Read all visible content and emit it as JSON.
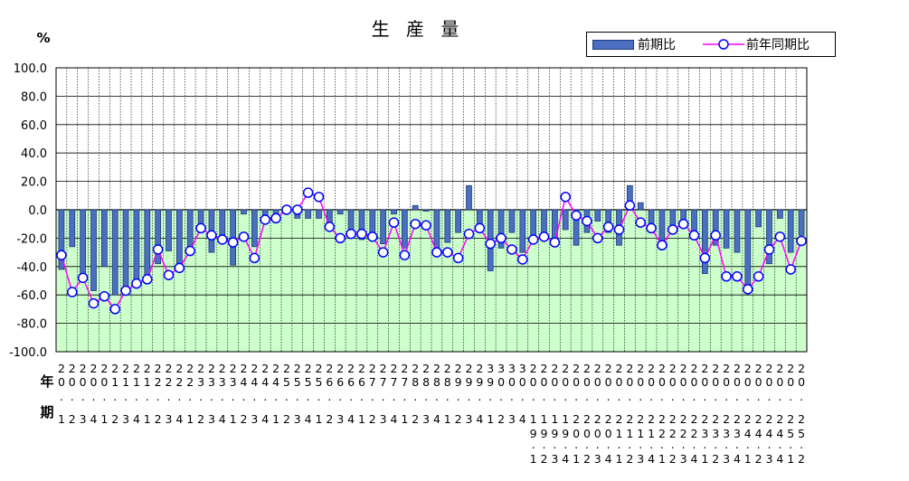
{
  "chart_data": {
    "type": "bar",
    "title": "生 産 量",
    "ylabel": "%",
    "row_label_year": "年",
    "row_label_period": "期",
    "ylim": [
      -100,
      100
    ],
    "yticks": [
      "100.0",
      "80.0",
      "60.0",
      "40.0",
      "20.0",
      "0.0",
      "-20.0",
      "-40.0",
      "-60.0",
      "-80.0",
      "-100.0"
    ],
    "categories": [
      "2001",
      "2002",
      "2003",
      "2004",
      "2011",
      "2012",
      "2013",
      "2014",
      "2021",
      "2022",
      "2023",
      "2024",
      "2031",
      "2032",
      "2033",
      "2034",
      "2041",
      "2042",
      "2043",
      "2044",
      "2051",
      "2052",
      "2053",
      "2054",
      "2061",
      "2062",
      "2063",
      "2064",
      "2071",
      "2072",
      "2073",
      "2074",
      "2081",
      "2082",
      "2083",
      "2084",
      "2091",
      "2092",
      "2093",
      "2094",
      "3001",
      "3002",
      "3003",
      "3004",
      "2191",
      "2192",
      "2193",
      "2194",
      "2201",
      "2202",
      "2203",
      "2204",
      "2211",
      "2212",
      "2213",
      "2214",
      "2221",
      "2222",
      "2223",
      "2224",
      "2231",
      "2232",
      "2233",
      "2234",
      "2241",
      "2242",
      "2243",
      "2244",
      "2251",
      "2252"
    ],
    "grid": true,
    "legend_position": "top-right",
    "series": [
      {
        "name": "前期比",
        "type": "bar",
        "color": "#4a6fc0",
        "values": [
          -42,
          -26,
          -47,
          -57,
          -40,
          -60,
          -57,
          -51,
          -52,
          -38,
          -29,
          -38,
          -28,
          -16,
          -30,
          -18,
          -39,
          -3,
          -26,
          -9,
          -4,
          1,
          -6,
          -6,
          -6,
          -14,
          -3,
          -17,
          -21,
          -21,
          -24,
          -3,
          -27,
          3,
          -1,
          -29,
          -23,
          -16,
          17,
          -10,
          -43,
          -27,
          -16,
          -30,
          -21,
          -17,
          -24,
          -14,
          -25,
          -16,
          -8,
          -16,
          -25,
          17,
          5,
          -12,
          -28,
          -17,
          -8,
          -15,
          -45,
          -25,
          -27,
          -30,
          -56,
          -12,
          -38,
          -6,
          -30,
          -18
        ]
      },
      {
        "name": "前年同期比",
        "type": "line",
        "color": "#ff00ff",
        "marker_color": "#0000ff",
        "values": [
          -32,
          -58,
          -48,
          -66,
          -61,
          -70,
          -57,
          -52,
          -49,
          -28,
          -46,
          -41,
          -29,
          -13,
          -18,
          -21,
          -23,
          -19,
          -34,
          -7,
          -6,
          0,
          0,
          12,
          9,
          -12,
          -20,
          -17,
          -17,
          -19,
          -30,
          -9,
          -32,
          -10,
          -11,
          -30,
          -30,
          -34,
          -17,
          -13,
          -24,
          -20,
          -28,
          -35,
          -21,
          -19,
          -23,
          9,
          -4,
          -8,
          -20,
          -12,
          -14,
          3,
          -9,
          -13,
          -25,
          -14,
          -10,
          -18,
          -34,
          -18,
          -47,
          -47,
          -56,
          -47,
          -28,
          -19,
          -42,
          -22
        ]
      }
    ],
    "x_labels": [
      {
        "year": [
          "2",
          "0"
        ],
        "half": "",
        "q": "1"
      }
    ]
  },
  "x_axis_rows": {
    "year_top": [
      "2",
      "2",
      "2",
      "2",
      "2",
      "2",
      "2",
      "2",
      "2",
      "2",
      "2",
      "2",
      "2",
      "2",
      "2",
      "2",
      "2",
      "2",
      "2",
      "2",
      "2",
      "2",
      "2",
      "2",
      "2",
      "2",
      "2",
      "2",
      "2",
      "2",
      "2",
      "2",
      "2",
      "2",
      "2",
      "2",
      "2",
      "2",
      "2",
      "2",
      "3",
      "3",
      "3",
      "3",
      "2",
      "2",
      "2",
      "2",
      "2",
      "2",
      "2",
      "2",
      "2",
      "2",
      "2",
      "2",
      "2",
      "2",
      "2",
      "2",
      "2",
      "2",
      "2",
      "2",
      "2",
      "2",
      "2",
      "2",
      "2",
      "2"
    ],
    "year_mid": [
      "0",
      "0",
      "0",
      "0",
      "0",
      "1",
      "1",
      "1",
      "1",
      "2",
      "2",
      "2",
      "2",
      "3",
      "3",
      "3",
      "3",
      "4",
      "4",
      "4",
      "4",
      "5",
      "5",
      "5",
      "5",
      "6",
      "6",
      "6",
      "6",
      "7",
      "7",
      "7",
      "7",
      "8",
      "8",
      "8",
      "8",
      "9",
      "9",
      "9",
      "9",
      "0",
      "0",
      "0",
      "0",
      "0",
      "0",
      "0",
      "0",
      "0",
      "0",
      "0",
      "0",
      "0",
      "0",
      "0",
      "0",
      "0",
      "0",
      "0",
      "0",
      "0",
      "0",
      "0",
      "0",
      "0",
      "0",
      "0",
      "0",
      "0"
    ],
    "dots1": [
      ".",
      ".",
      ".",
      ".",
      ".",
      ".",
      ".",
      ".",
      ".",
      ".",
      ".",
      ".",
      ".",
      ".",
      ".",
      ".",
      ".",
      ".",
      ".",
      ".",
      ".",
      ".",
      ".",
      ".",
      ".",
      ".",
      ".",
      ".",
      ".",
      ".",
      ".",
      ".",
      ".",
      ".",
      ".",
      ".",
      ".",
      ".",
      ".",
      ".",
      ".",
      ".",
      ".",
      ".",
      ".",
      ".",
      ".",
      ".",
      ".",
      ".",
      ".",
      ".",
      ".",
      ".",
      ".",
      ".",
      ".",
      ".",
      ".",
      ".",
      ".",
      ".",
      ".",
      ".",
      ".",
      ".",
      ".",
      ".",
      ".",
      "."
    ],
    "era_low": [
      "1",
      "2",
      "3",
      "4",
      "1",
      "2",
      "3",
      "4",
      "1",
      "2",
      "3",
      "4",
      "1",
      "2",
      "3",
      "4",
      "1",
      "2",
      "3",
      "4",
      "1",
      "2",
      "3",
      "4",
      "1",
      "2",
      "3",
      "4",
      "1",
      "2",
      "3",
      "4",
      "1",
      "2",
      "3",
      "4",
      "1",
      "2",
      "3",
      "4",
      "1",
      "2",
      "3",
      "4",
      "1",
      "1",
      "1",
      "1",
      "2",
      "2",
      "2",
      "2",
      "2",
      "2",
      "2",
      "2",
      "2",
      "2",
      "2",
      "2",
      "2",
      "2",
      "2",
      "2",
      "2",
      "2",
      "2",
      "2",
      "2",
      "2"
    ],
    "era_low2": [
      "",
      "",
      "",
      "",
      "",
      "",
      "",
      "",
      "",
      "",
      "",
      "",
      "",
      "",
      "",
      "",
      "",
      "",
      "",
      "",
      "",
      "",
      "",
      "",
      "",
      "",
      "",
      "",
      "",
      "",
      "",
      "",
      "",
      "",
      "",
      "",
      "",
      "",
      "",
      "",
      "",
      "",
      "",
      "",
      "9",
      "9",
      "9",
      "9",
      "0",
      "0",
      "0",
      "0",
      "1",
      "1",
      "1",
      "1",
      "2",
      "2",
      "2",
      "2",
      "3",
      "3",
      "3",
      "3",
      "4",
      "4",
      "4",
      "4",
      "5",
      "5"
    ],
    "dots2": [
      "",
      "",
      "",
      "",
      "",
      "",
      "",
      "",
      "",
      "",
      "",
      "",
      "",
      "",
      "",
      "",
      "",
      "",
      "",
      "",
      "",
      "",
      "",
      "",
      "",
      "",
      "",
      "",
      "",
      "",
      "",
      "",
      "",
      "",
      "",
      "",
      "",
      "",
      "",
      "",
      "",
      "",
      "",
      "",
      ".",
      ".",
      ".",
      ".",
      ".",
      ".",
      ".",
      ".",
      ".",
      ".",
      ".",
      ".",
      ".",
      ".",
      ".",
      ".",
      ".",
      ".",
      ".",
      ".",
      ".",
      ".",
      ".",
      ".",
      ".",
      "."
    ],
    "q_low": [
      "",
      "",
      "",
      "",
      "",
      "",
      "",
      "",
      "",
      "",
      "",
      "",
      "",
      "",
      "",
      "",
      "",
      "",
      "",
      "",
      "",
      "",
      "",
      "",
      "",
      "",
      "",
      "",
      "",
      "",
      "",
      "",
      "",
      "",
      "",
      "",
      "",
      "",
      "",
      "",
      "",
      "",
      "",
      "",
      "1",
      "2",
      "3",
      "4",
      "1",
      "2",
      "3",
      "4",
      "1",
      "2",
      "3",
      "4",
      "1",
      "2",
      "3",
      "4",
      "1",
      "2",
      "3",
      "4",
      "1",
      "2",
      "3",
      "4",
      "1",
      "2"
    ]
  }
}
